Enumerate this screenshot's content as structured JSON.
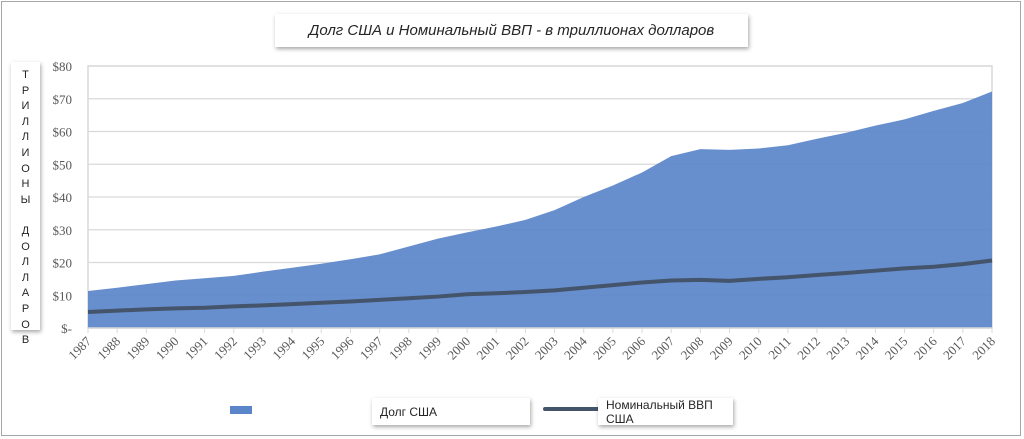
{
  "chart_data": {
    "type": "area",
    "title": "Долг США и Номинальный ВВП - в триллионах долларов",
    "ylabel": "ТРИЛЛИОНЫ ДОЛЛАРОВ",
    "xlabel": "",
    "ylim": [
      0,
      80
    ],
    "yticks": [
      0,
      10,
      20,
      30,
      40,
      50,
      60,
      70,
      80
    ],
    "ytick_labels": [
      "$-",
      "$10",
      "$20",
      "$30",
      "$40",
      "$50",
      "$60",
      "$70",
      "$80"
    ],
    "grid": true,
    "legend_position": "bottom",
    "categories": [
      "1987",
      "1988",
      "1989",
      "1990",
      "1991",
      "1992",
      "1993",
      "1994",
      "1995",
      "1996",
      "1997",
      "1998",
      "1999",
      "2000",
      "2001",
      "2002",
      "2003",
      "2004",
      "2005",
      "2006",
      "2007",
      "2008",
      "2009",
      "2010",
      "2011",
      "2012",
      "2013",
      "2014",
      "2015",
      "2016",
      "2017",
      "2018"
    ],
    "series": [
      {
        "name": "Долг США",
        "type": "area",
        "color": "#5b85c9",
        "values": [
          11.3,
          12.3,
          13.4,
          14.5,
          15.2,
          15.9,
          17.2,
          18.4,
          19.6,
          21.0,
          22.5,
          24.9,
          27.3,
          29.2,
          31.0,
          33.0,
          36.0,
          40.0,
          43.5,
          47.5,
          52.5,
          54.6,
          54.4,
          54.8,
          55.8,
          57.8,
          59.6,
          61.8,
          63.7,
          66.3,
          68.7,
          72.2
        ]
      },
      {
        "name": "Номинальный ВВП США",
        "type": "line",
        "color": "#44546a",
        "values": [
          4.9,
          5.3,
          5.7,
          6.0,
          6.2,
          6.6,
          6.9,
          7.3,
          7.7,
          8.1,
          8.6,
          9.1,
          9.6,
          10.3,
          10.6,
          11.0,
          11.5,
          12.3,
          13.1,
          13.9,
          14.5,
          14.7,
          14.4,
          15.0,
          15.5,
          16.2,
          16.8,
          17.5,
          18.2,
          18.7,
          19.5,
          20.6
        ]
      }
    ]
  }
}
